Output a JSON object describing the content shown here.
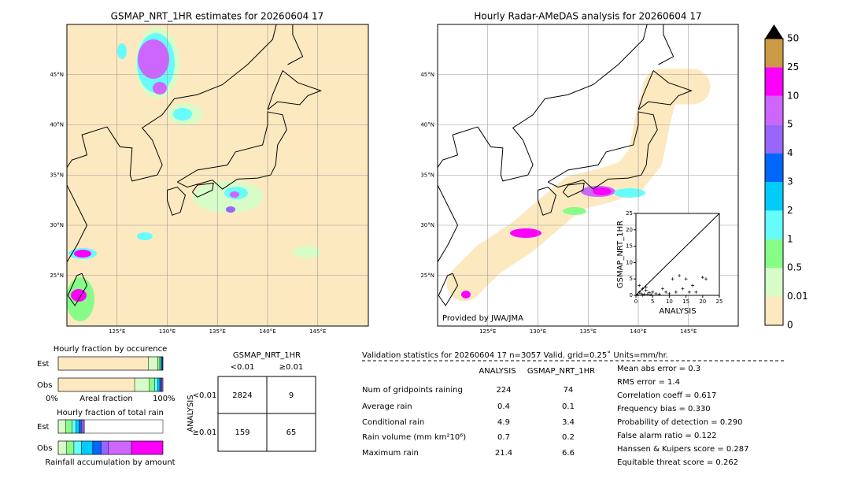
{
  "left_map": {
    "title": "GSMAP_NRT_1HR estimates for 20260604 17",
    "lat_labels": [
      "45°N",
      "40°N",
      "35°N",
      "30°N",
      "25°N"
    ],
    "lon_labels": [
      "125°E",
      "130°E",
      "135°E",
      "140°E",
      "145°E"
    ]
  },
  "right_map": {
    "title": "Hourly Radar-AMeDAS analysis for 20260604 17",
    "lat_labels": [
      "45°N",
      "40°N",
      "35°N",
      "30°N",
      "25°N"
    ],
    "lon_labels": [
      "125°E",
      "130°E",
      "135°E",
      "140°E",
      "145°E"
    ],
    "credit": "Provided by JWA/JMA"
  },
  "colorbar": {
    "labels": [
      "50",
      "25",
      "10",
      "5",
      "4",
      "3",
      "2",
      "1",
      "0.5",
      "0.01",
      "0"
    ],
    "colors": [
      "#fde9c0",
      "#d8fcc8",
      "#88fc88",
      "#66fcfc",
      "#00ccfc",
      "#0066fc",
      "#9966fc",
      "#cc66fc",
      "#fc00fc",
      "#cc9944"
    ]
  },
  "scatter": {
    "xlabel": "ANALYSIS",
    "ylabel": "GSMAP_NRT_1HR",
    "ticks": [
      0,
      5,
      10,
      15,
      20,
      25
    ],
    "x": [
      0.5,
      1,
      1.5,
      2,
      2.5,
      3,
      3.5,
      4,
      5,
      6,
      7,
      8,
      9,
      10,
      11,
      12,
      13,
      14,
      15,
      16,
      17,
      18,
      20,
      21,
      1,
      2,
      3,
      4.5
    ],
    "y": [
      0.2,
      1,
      0.5,
      2,
      0.3,
      1.5,
      0.4,
      0.8,
      1,
      0.5,
      0.3,
      2,
      1,
      0.5,
      5,
      1,
      6,
      2,
      5,
      1,
      3,
      1,
      5.5,
      5,
      3,
      0.1,
      2.5,
      0.2
    ]
  },
  "occurrence": {
    "title": "Hourly fraction by occurence",
    "rows": [
      "Est",
      "Obs"
    ],
    "est": [
      86,
      9,
      2,
      1,
      1,
      0.5,
      0.5,
      0,
      0,
      0
    ],
    "obs": [
      73,
      14,
      5,
      3,
      2,
      1,
      1,
      1,
      0,
      0
    ],
    "left": "0%",
    "mid": "Areal fraction",
    "right": "100%"
  },
  "total": {
    "title": "Hourly fraction of total rain",
    "rows": [
      "Est",
      "Obs"
    ],
    "est": [
      0,
      7,
      6,
      4,
      3,
      2,
      2,
      1,
      0,
      0
    ],
    "obs": [
      0,
      8,
      7,
      7,
      11,
      8,
      7,
      22,
      30,
      0
    ],
    "footer": "Rainfall accumulation by amount"
  },
  "contingency": {
    "header": "GSMAP_NRT_1HR",
    "cols": [
      "<0.01",
      "≥0.01"
    ],
    "side": "ANALYSIS",
    "rows": [
      "<0.01",
      "≥0.01"
    ],
    "cells": [
      [
        "2824",
        "9"
      ],
      [
        "159",
        "65"
      ]
    ]
  },
  "validation": {
    "title": "Validation statistics for 20260604 17  n=3057 Valid. grid=0.25˚ Units=mm/hr.",
    "columns": [
      "ANALYSIS",
      "GSMAP_NRT_1HR"
    ],
    "rows": [
      [
        "Num of gridpoints raining",
        "224",
        "74"
      ],
      [
        "Average rain",
        "0.4",
        "0.1"
      ],
      [
        "Conditional rain",
        "4.9",
        "3.4"
      ],
      [
        "Rain volume (mm km²10⁶)",
        "0.7",
        "0.2"
      ],
      [
        "Maximum rain",
        "21.4",
        "6.6"
      ]
    ]
  },
  "scores": [
    "Mean abs error =    0.3",
    "RMS error =    1.4",
    "Correlation coeff =  0.617",
    "Frequency bias =  0.330",
    "Probability of detection =  0.290",
    "False alarm ratio =  0.122",
    "Hanssen & Kuipers score =  0.287",
    "Equitable threat score =  0.262"
  ]
}
